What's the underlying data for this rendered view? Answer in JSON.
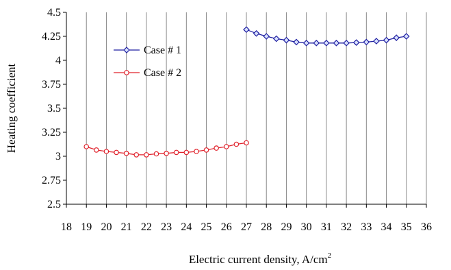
{
  "chart_data": {
    "type": "line",
    "xlabel": "Electric current density, A/cm",
    "xlabel_superscript": "2",
    "ylabel": "Heating coefficient",
    "xlim": [
      18,
      36
    ],
    "ylim": [
      2.5,
      4.5
    ],
    "xticks": [
      18,
      19,
      20,
      21,
      22,
      23,
      24,
      25,
      26,
      27,
      28,
      29,
      30,
      31,
      32,
      33,
      34,
      35,
      36
    ],
    "yticks": [
      "2.5",
      "2.75",
      "3",
      "3.25",
      "3.5",
      "3.75",
      "4",
      "4.25",
      "4.5"
    ],
    "grid": "vertical",
    "legend_position": "top-left",
    "series": [
      {
        "name": "Case # 1",
        "color": "#1f1fa0",
        "marker": "diamond",
        "x": [
          27,
          27.5,
          28,
          28.5,
          29,
          29.5,
          30,
          30.5,
          31,
          31.5,
          32,
          32.5,
          33,
          33.5,
          34,
          34.5,
          35
        ],
        "y": [
          4.32,
          4.28,
          4.25,
          4.225,
          4.21,
          4.19,
          4.18,
          4.18,
          4.18,
          4.18,
          4.18,
          4.185,
          4.19,
          4.2,
          4.21,
          4.235,
          4.25
        ]
      },
      {
        "name": "Case # 2",
        "color": "#e0202a",
        "marker": "circle",
        "x": [
          19,
          19.5,
          20,
          20.5,
          21,
          21.5,
          22,
          22.5,
          23,
          23.5,
          24,
          24.5,
          25,
          25.5,
          26,
          26.5,
          27
        ],
        "y": [
          3.1,
          3.065,
          3.05,
          3.04,
          3.03,
          3.015,
          3.015,
          3.025,
          3.03,
          3.04,
          3.04,
          3.05,
          3.065,
          3.085,
          3.1,
          3.125,
          3.14
        ]
      }
    ]
  }
}
